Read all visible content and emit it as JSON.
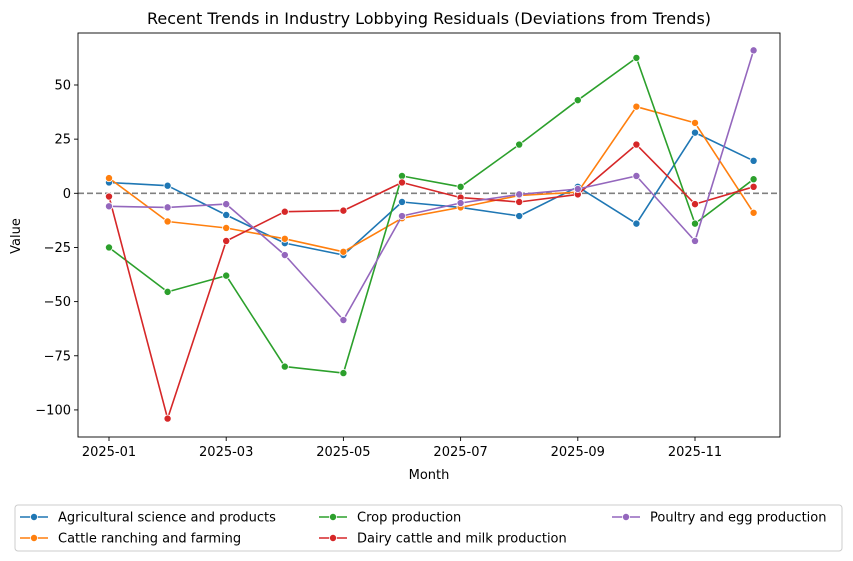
{
  "chart_data": {
    "type": "line",
    "title": "Recent Trends in Industry Lobbying Residuals (Deviations from Trends)",
    "xlabel": "Month",
    "ylabel": "Value",
    "x": [
      "2025-01",
      "2025-02",
      "2025-03",
      "2025-04",
      "2025-05",
      "2025-06",
      "2025-07",
      "2025-08",
      "2025-09",
      "2025-10",
      "2025-11",
      "2025-12"
    ],
    "xticks": [
      "2025-01",
      "2025-03",
      "2025-05",
      "2025-07",
      "2025-09",
      "2025-11"
    ],
    "yticks": [
      50,
      25,
      0,
      -25,
      -50,
      -75,
      -100
    ],
    "ytick_labels": [
      "50",
      "25",
      "0",
      "−25",
      "−50",
      "−75",
      "−100"
    ],
    "ylim": [
      -112.5,
      74
    ],
    "reference_line": {
      "y": 0,
      "style": "dashed",
      "color": "#808080"
    },
    "grid": false,
    "legend_placement": "below",
    "series": [
      {
        "name": "Agricultural science and products",
        "color": "#1f77b4",
        "values": [
          5,
          3.5,
          -10,
          -23,
          -28.5,
          -4,
          -6.5,
          -10.5,
          3,
          -14,
          28,
          15
        ]
      },
      {
        "name": "Cattle ranching and farming",
        "color": "#ff7f0e",
        "values": [
          7,
          -13,
          -16,
          -21,
          -27,
          -11.5,
          -6.5,
          -1,
          0.5,
          40,
          32.5,
          -9
        ]
      },
      {
        "name": "Crop production",
        "color": "#2ca02c",
        "values": [
          -25,
          -45.5,
          -38,
          -80,
          -83,
          8,
          3,
          22.5,
          43,
          62.5,
          -14,
          6.5
        ]
      },
      {
        "name": "Dairy cattle and milk production",
        "color": "#d62728",
        "values": [
          -1.5,
          -104,
          -22,
          -8.5,
          -8,
          5,
          -2,
          -4,
          -0.5,
          22.5,
          -5,
          3
        ]
      },
      {
        "name": "Poultry and egg production",
        "color": "#9467bd",
        "values": [
          -6,
          -6.5,
          -5,
          -28.5,
          -58.5,
          -10.5,
          -4.5,
          -0.5,
          2,
          8,
          -22,
          66
        ]
      }
    ]
  }
}
